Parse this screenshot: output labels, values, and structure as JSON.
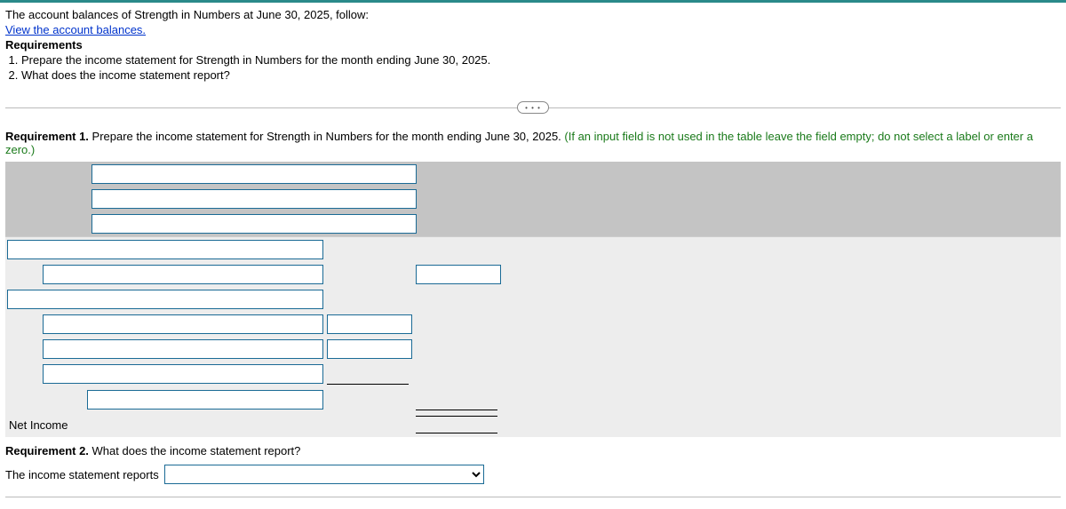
{
  "intro": "The account balances of Strength in Numbers at June 30, 2025, follow:",
  "link_text": "View the account balances.",
  "requirements_heading": "Requirements",
  "requirements": [
    "Prepare the income statement for Strength in Numbers for the month ending June 30, 2025.",
    "What does the income statement report?"
  ],
  "pill_dots": "• • •",
  "req1": {
    "label": "Requirement 1.",
    "text": " Prepare the income statement for Strength in Numbers for the month ending June 30, 2025. ",
    "note": "(If an input field is not used in the table leave the field empty; do not select a label or enter a zero.)"
  },
  "statement": {
    "header_inputs": [
      "",
      "",
      ""
    ],
    "rows": [
      {
        "indent": 0,
        "label_value": "",
        "col1": null,
        "col2": null
      },
      {
        "indent": 1,
        "label_value": "",
        "col1": null,
        "col2": "input"
      },
      {
        "indent": 0,
        "label_value": "",
        "col1": null,
        "col2": null
      },
      {
        "indent": 1,
        "label_value": "",
        "col1": "input",
        "col2": null
      },
      {
        "indent": 1,
        "label_value": "",
        "col1": "input",
        "col2": null
      },
      {
        "indent": 1,
        "label_value": "",
        "col1": "underline",
        "col2": null
      },
      {
        "indent": 2,
        "label_value": "",
        "col1": null,
        "col2": "underline"
      }
    ],
    "net_label": "Net Income",
    "net_col2": "double"
  },
  "req2": {
    "label": "Requirement 2.",
    "text": " What does the income statement report?",
    "answer_prefix": "The income statement reports",
    "select_value": ""
  }
}
